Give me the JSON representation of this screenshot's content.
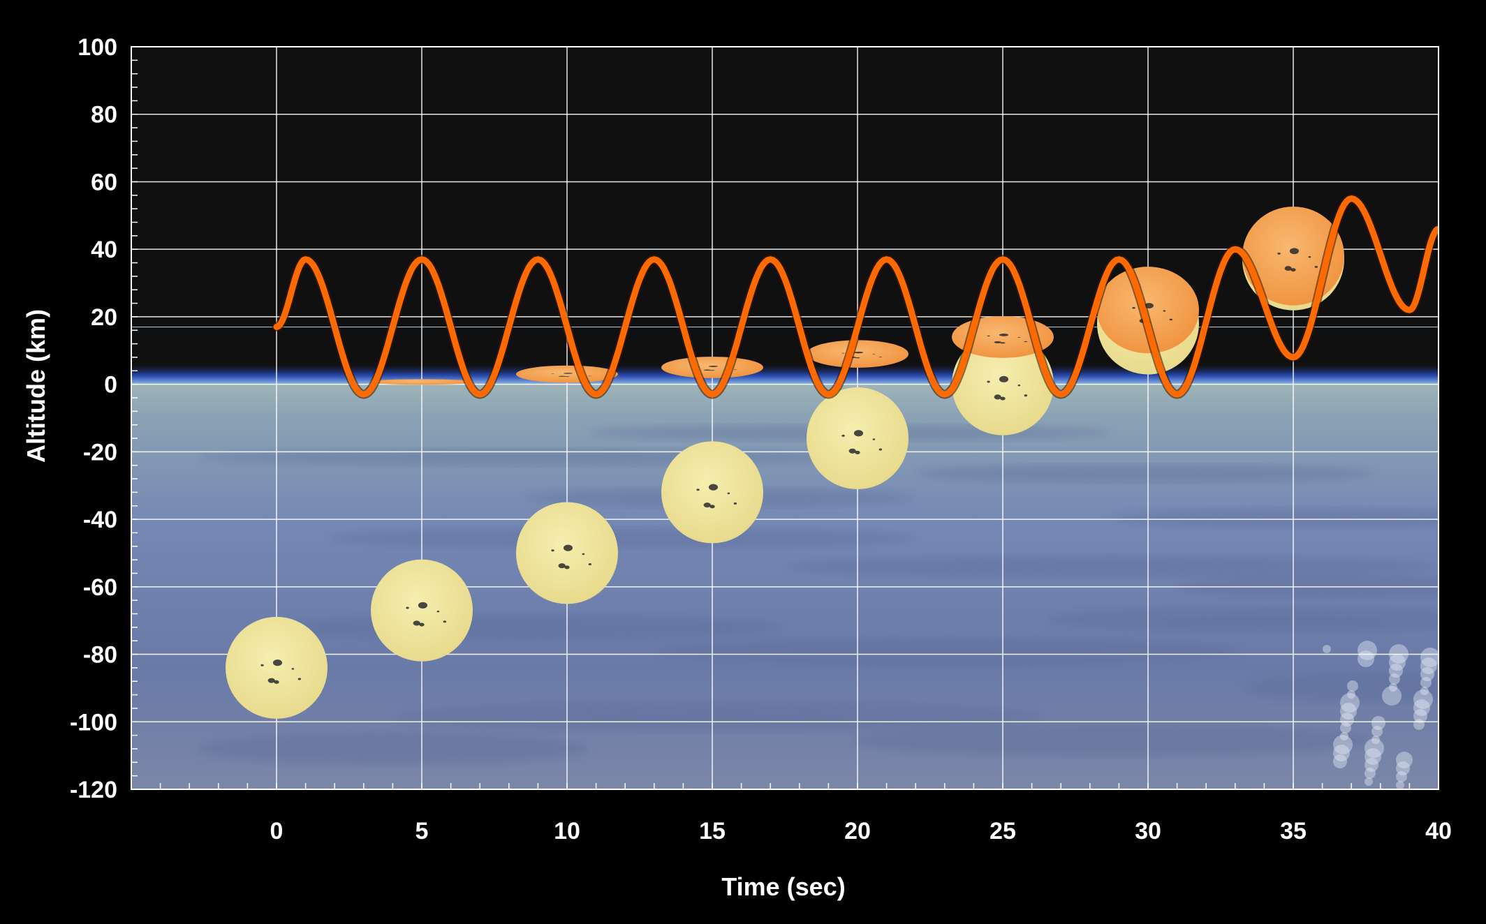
{
  "chart_data": {
    "type": "line",
    "title": "",
    "xlabel": "Time (sec)",
    "ylabel": "Altitude (km)",
    "xlim": [
      -5,
      40
    ],
    "ylim": [
      -120,
      100
    ],
    "x_ticks": [
      0,
      5,
      10,
      15,
      20,
      25,
      30,
      35,
      40
    ],
    "y_ticks": [
      100,
      80,
      60,
      40,
      20,
      0,
      -20,
      -40,
      -60,
      -80,
      -100,
      -120
    ],
    "grid": true,
    "background": "earth-horizon-photo",
    "series": [
      {
        "name": "",
        "color": "#ff6a00",
        "x": [
          0,
          1,
          3,
          5,
          7,
          9,
          11,
          13,
          15,
          17,
          19,
          21,
          23,
          25,
          27,
          29,
          31,
          33,
          35,
          37,
          39,
          40
        ],
        "y": [
          17,
          37,
          -3,
          37,
          -3,
          37,
          -3,
          37,
          -3,
          37,
          -3,
          37,
          -3,
          37,
          -3,
          37,
          -3,
          40,
          8,
          55,
          22,
          46
        ]
      }
    ],
    "sun_markers": [
      {
        "x": 0,
        "true_y": -84,
        "apparent_y": null,
        "flatten": 0
      },
      {
        "x": 5,
        "true_y": -67,
        "apparent_y": 0.7,
        "flatten": 0.04
      },
      {
        "x": 10,
        "true_y": -50,
        "apparent_y": 3,
        "flatten": 0.17
      },
      {
        "x": 15,
        "true_y": -32,
        "apparent_y": 5,
        "flatten": 0.21
      },
      {
        "x": 20,
        "true_y": -16,
        "apparent_y": 9,
        "flatten": 0.27
      },
      {
        "x": 25,
        "true_y": 0,
        "apparent_y": 14,
        "flatten": 0.41
      },
      {
        "x": 30,
        "true_y": 18,
        "apparent_y": 22,
        "flatten": 0.85
      },
      {
        "x": 35,
        "true_y": 37,
        "apparent_y": 38,
        "flatten": 0.97
      }
    ],
    "reference_line_y": 18
  },
  "colors": {
    "curve": "#ff6a00",
    "grid": "#ffffff",
    "sun_true": "#f0e6a0",
    "sun_apparent": "#f5a24e",
    "sky": "#101010"
  }
}
